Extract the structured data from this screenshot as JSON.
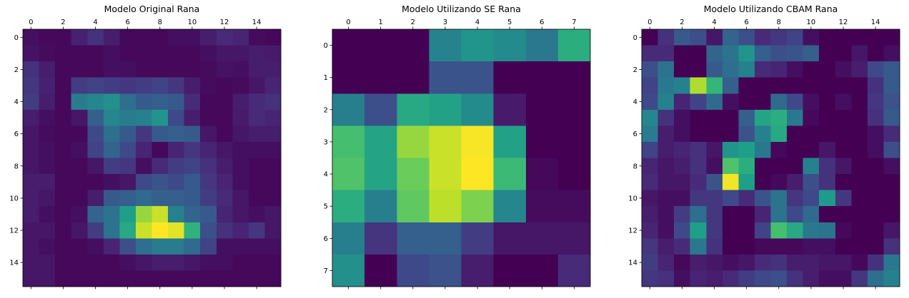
{
  "figure": {
    "background": "#ffffff",
    "colormap": "viridis",
    "value_range": [
      0,
      1
    ]
  },
  "chart_data": [
    {
      "type": "heatmap",
      "title": "Modelo Utilizando SE Rana",
      "x_ticks": [
        0,
        1,
        2,
        3,
        4,
        5,
        6,
        7
      ],
      "y_ticks": [
        0,
        1,
        2,
        3,
        4,
        5,
        6,
        7
      ],
      "rows": 8,
      "cols": 8,
      "values": [
        [
          0.0,
          0.0,
          0.0,
          0.45,
          0.52,
          0.48,
          0.4,
          0.62
        ],
        [
          0.0,
          0.0,
          0.0,
          0.26,
          0.26,
          0.0,
          0.0,
          0.0
        ],
        [
          0.43,
          0.24,
          0.6,
          0.57,
          0.48,
          0.07,
          0.0,
          0.0
        ],
        [
          0.7,
          0.58,
          0.84,
          0.92,
          0.99,
          0.57,
          0.0,
          0.0
        ],
        [
          0.72,
          0.58,
          0.77,
          0.92,
          1.0,
          0.68,
          0.02,
          0.0
        ],
        [
          0.62,
          0.43,
          0.75,
          0.9,
          0.8,
          0.46,
          0.03,
          0.03
        ],
        [
          0.43,
          0.15,
          0.3,
          0.3,
          0.18,
          0.06,
          0.06,
          0.06
        ],
        [
          0.5,
          0.0,
          0.22,
          0.25,
          0.08,
          0.0,
          0.0,
          0.12
        ]
      ]
    },
    {
      "type": "heatmap",
      "title": "Modelo Original Rana",
      "x_ticks": [
        0,
        2,
        4,
        6,
        8,
        10,
        12,
        14
      ],
      "y_ticks": [
        0,
        2,
        4,
        6,
        8,
        10,
        12,
        14
      ],
      "rows": 16,
      "cols": 16,
      "values": [
        [
          0.04,
          0.02,
          0.02,
          0.09,
          0.14,
          0.08,
          0.02,
          0.02,
          0.02,
          0.04,
          0.04,
          0.08,
          0.12,
          0.1,
          0.03,
          0.02
        ],
        [
          0.05,
          0.03,
          0.02,
          0.02,
          0.02,
          0.04,
          0.02,
          0.02,
          0.02,
          0.02,
          0.02,
          0.04,
          0.06,
          0.06,
          0.08,
          0.07
        ],
        [
          0.14,
          0.08,
          0.02,
          0.02,
          0.02,
          0.04,
          0.04,
          0.02,
          0.02,
          0.02,
          0.02,
          0.03,
          0.05,
          0.04,
          0.08,
          0.08
        ],
        [
          0.16,
          0.09,
          0.02,
          0.18,
          0.2,
          0.18,
          0.16,
          0.18,
          0.2,
          0.16,
          0.08,
          0.03,
          0.02,
          0.03,
          0.06,
          0.1
        ],
        [
          0.18,
          0.08,
          0.02,
          0.42,
          0.46,
          0.5,
          0.36,
          0.28,
          0.3,
          0.28,
          0.12,
          0.02,
          0.02,
          0.08,
          0.12,
          0.14
        ],
        [
          0.08,
          0.04,
          0.02,
          0.06,
          0.3,
          0.46,
          0.42,
          0.44,
          0.52,
          0.22,
          0.08,
          0.02,
          0.02,
          0.07,
          0.12,
          0.1
        ],
        [
          0.06,
          0.03,
          0.02,
          0.02,
          0.22,
          0.36,
          0.28,
          0.16,
          0.28,
          0.3,
          0.28,
          0.06,
          0.02,
          0.06,
          0.08,
          0.08
        ],
        [
          0.06,
          0.04,
          0.02,
          0.04,
          0.2,
          0.32,
          0.22,
          0.1,
          0.02,
          0.1,
          0.16,
          0.1,
          0.06,
          0.04,
          0.04,
          0.04
        ],
        [
          0.06,
          0.04,
          0.02,
          0.02,
          0.06,
          0.18,
          0.16,
          0.04,
          0.12,
          0.18,
          0.2,
          0.14,
          0.08,
          0.04,
          0.02,
          0.02
        ],
        [
          0.08,
          0.08,
          0.02,
          0.02,
          0.02,
          0.04,
          0.06,
          0.22,
          0.26,
          0.22,
          0.28,
          0.16,
          0.1,
          0.04,
          0.02,
          0.02
        ],
        [
          0.08,
          0.06,
          0.02,
          0.02,
          0.08,
          0.28,
          0.3,
          0.34,
          0.3,
          0.3,
          0.28,
          0.18,
          0.12,
          0.06,
          0.02,
          0.02
        ],
        [
          0.08,
          0.04,
          0.02,
          0.04,
          0.32,
          0.38,
          0.56,
          0.84,
          0.92,
          0.44,
          0.32,
          0.28,
          0.1,
          0.06,
          0.04,
          0.06
        ],
        [
          0.06,
          0.06,
          0.02,
          0.06,
          0.18,
          0.38,
          0.6,
          0.92,
          1.0,
          0.96,
          0.64,
          0.24,
          0.14,
          0.1,
          0.16,
          0.06
        ],
        [
          0.06,
          0.04,
          0.02,
          0.02,
          0.04,
          0.1,
          0.24,
          0.36,
          0.42,
          0.42,
          0.34,
          0.2,
          0.04,
          0.04,
          0.04,
          0.04
        ],
        [
          0.06,
          0.06,
          0.02,
          0.02,
          0.02,
          0.02,
          0.04,
          0.06,
          0.08,
          0.08,
          0.06,
          0.04,
          0.04,
          0.02,
          0.02,
          0.02
        ],
        [
          0.06,
          0.06,
          0.02,
          0.02,
          0.02,
          0.02,
          0.02,
          0.02,
          0.02,
          0.02,
          0.02,
          0.02,
          0.02,
          0.02,
          0.02,
          0.02
        ]
      ]
    },
    {
      "type": "heatmap",
      "title": "Modelo Utilizando CBAM Rana",
      "x_ticks": [
        0,
        2,
        4,
        6,
        8,
        10,
        12,
        14
      ],
      "y_ticks": [
        0,
        2,
        4,
        6,
        8,
        10,
        12,
        14
      ],
      "rows": 16,
      "cols": 16,
      "values": [
        [
          0.0,
          0.14,
          0.28,
          0.24,
          0.06,
          0.32,
          0.24,
          0.12,
          0.16,
          0.2,
          0.04,
          0.0,
          0.0,
          0.0,
          0.0,
          0.0
        ],
        [
          0.12,
          0.12,
          0.0,
          0.0,
          0.32,
          0.38,
          0.52,
          0.3,
          0.24,
          0.26,
          0.3,
          0.0,
          0.0,
          0.06,
          0.0,
          0.04
        ],
        [
          0.24,
          0.38,
          0.0,
          0.0,
          0.28,
          0.36,
          0.44,
          0.12,
          0.1,
          0.04,
          0.0,
          0.0,
          0.04,
          0.08,
          0.22,
          0.28
        ],
        [
          0.2,
          0.4,
          0.44,
          0.88,
          0.66,
          0.3,
          0.0,
          0.0,
          0.0,
          0.0,
          0.0,
          0.0,
          0.0,
          0.0,
          0.14,
          0.28
        ],
        [
          0.22,
          0.44,
          0.1,
          0.2,
          0.34,
          0.04,
          0.0,
          0.0,
          0.34,
          0.22,
          0.04,
          0.0,
          0.04,
          0.0,
          0.16,
          0.26
        ],
        [
          0.46,
          0.14,
          0.04,
          0.0,
          0.0,
          0.0,
          0.3,
          0.58,
          0.62,
          0.4,
          0.02,
          0.0,
          0.0,
          0.0,
          0.14,
          0.28
        ],
        [
          0.42,
          0.08,
          0.04,
          0.0,
          0.0,
          0.0,
          0.26,
          0.44,
          0.6,
          0.0,
          0.0,
          0.0,
          0.0,
          0.0,
          0.04,
          0.12
        ],
        [
          0.2,
          0.08,
          0.1,
          0.14,
          0.06,
          0.52,
          0.56,
          0.4,
          0.02,
          0.0,
          0.0,
          0.06,
          0.0,
          0.0,
          0.04,
          0.24
        ],
        [
          0.1,
          0.06,
          0.08,
          0.14,
          0.04,
          0.72,
          0.62,
          0.0,
          0.0,
          0.0,
          0.44,
          0.14,
          0.06,
          0.0,
          0.0,
          0.04
        ],
        [
          0.12,
          0.06,
          0.06,
          0.12,
          0.26,
          0.98,
          0.56,
          0.0,
          0.02,
          0.08,
          0.24,
          0.14,
          0.0,
          0.0,
          0.0,
          0.0
        ],
        [
          0.06,
          0.04,
          0.04,
          0.16,
          0.16,
          0.22,
          0.12,
          0.26,
          0.38,
          0.16,
          0.22,
          0.54,
          0.16,
          0.0,
          0.0,
          0.0
        ],
        [
          0.08,
          0.04,
          0.18,
          0.36,
          0.16,
          0.0,
          0.0,
          0.1,
          0.38,
          0.22,
          0.34,
          0.0,
          0.0,
          0.0,
          0.0,
          0.0
        ],
        [
          0.1,
          0.04,
          0.22,
          0.56,
          0.16,
          0.0,
          0.0,
          0.2,
          0.7,
          0.6,
          0.4,
          0.38,
          0.02,
          0.0,
          0.0,
          0.06
        ],
        [
          0.16,
          0.08,
          0.12,
          0.4,
          0.14,
          0.0,
          0.0,
          0.02,
          0.02,
          0.02,
          0.04,
          0.04,
          0.0,
          0.0,
          0.0,
          0.14
        ],
        [
          0.18,
          0.1,
          0.02,
          0.08,
          0.06,
          0.04,
          0.06,
          0.12,
          0.14,
          0.08,
          0.08,
          0.06,
          0.06,
          0.02,
          0.14,
          0.4
        ],
        [
          0.16,
          0.14,
          0.04,
          0.1,
          0.08,
          0.12,
          0.18,
          0.22,
          0.24,
          0.14,
          0.08,
          0.04,
          0.04,
          0.16,
          0.36,
          0.44
        ]
      ]
    }
  ]
}
